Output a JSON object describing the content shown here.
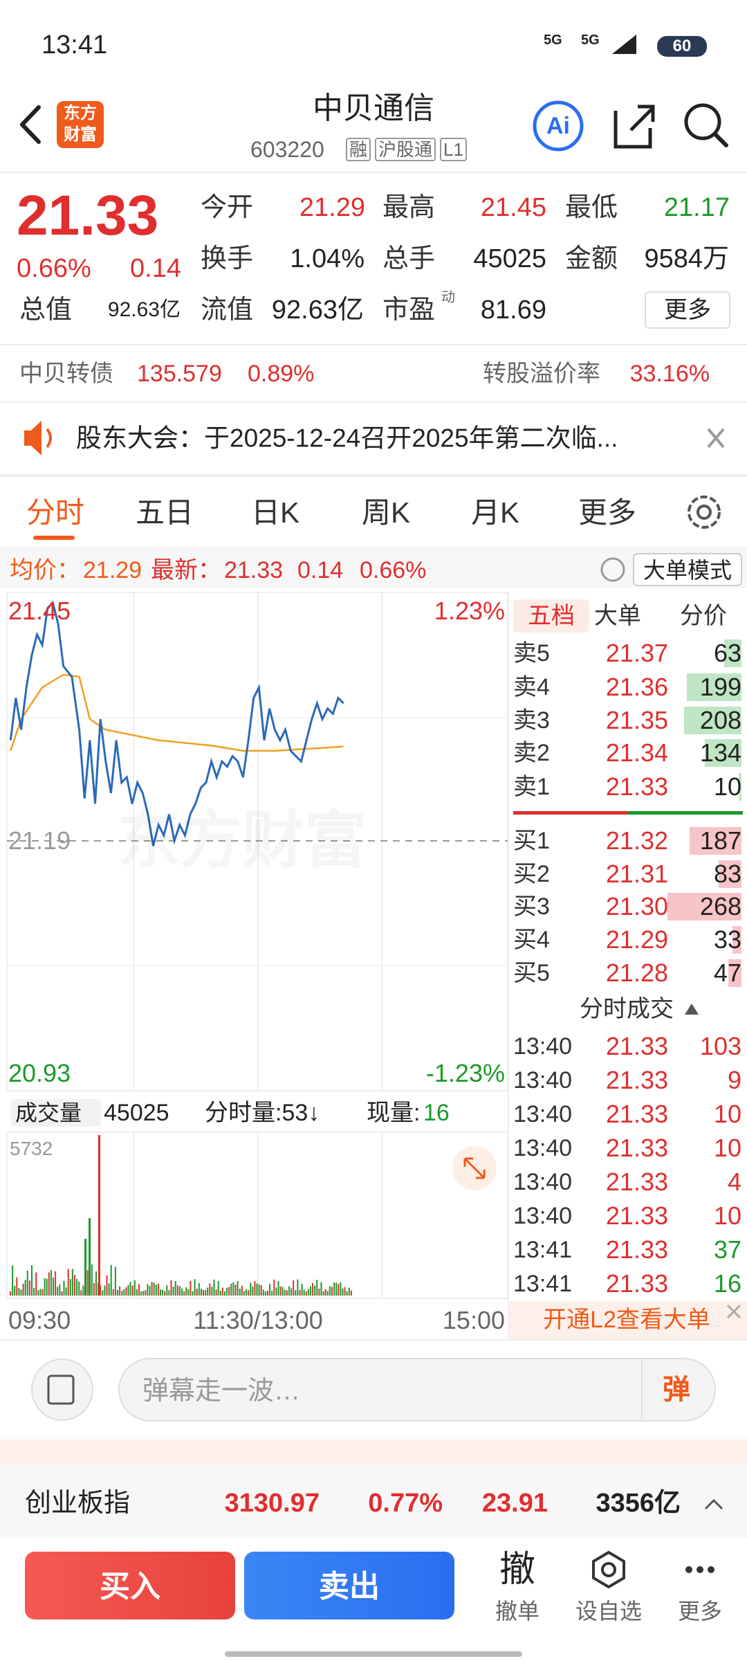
{
  "status": {
    "time": "13:41",
    "net1": "5G",
    "net2": "5G",
    "battery": "60"
  },
  "header": {
    "logo": [
      "东方",
      "财富"
    ],
    "title": "中贝通信",
    "code": "603220",
    "tags": [
      "融",
      "沪股通",
      "L1"
    ],
    "ai": "Ai"
  },
  "quote": {
    "price": "21.33",
    "pct": "0.66%",
    "change": "0.14",
    "more": "更多",
    "pe_sup": "动",
    "fields": [
      {
        "label": "今开",
        "value": "21.29",
        "color": "#e02e2e"
      },
      {
        "label": "最高",
        "value": "21.45",
        "color": "#e02e2e"
      },
      {
        "label": "最低",
        "value": "21.17",
        "color": "#1a9a2a"
      },
      {
        "label": "换手",
        "value": "1.04%",
        "color": "#222222"
      },
      {
        "label": "总手",
        "value": "45025",
        "color": "#222222"
      },
      {
        "label": "金额",
        "value": "9584万",
        "color": "#222222"
      },
      {
        "label": "总值",
        "value": "92.63亿",
        "color": "#222222"
      },
      {
        "label": "流值",
        "value": "92.63亿",
        "color": "#222222"
      },
      {
        "label": "市盈",
        "value": "81.69",
        "color": "#222222"
      }
    ]
  },
  "bond": {
    "name": "中贝转债",
    "price": "135.579",
    "pct": "0.89%",
    "premium_label": "转股溢价率",
    "premium": "33.16%"
  },
  "notice": {
    "text": "股东大会：于2025-12-24召开2025年第二次临..."
  },
  "tabs": [
    "分时",
    "五日",
    "日K",
    "周K",
    "月K",
    "更多"
  ],
  "info": {
    "avg_label": "均价：",
    "avg": "21.29",
    "latest_label": "最新：",
    "latest": "21.33",
    "change": "0.14",
    "pct": "0.66%",
    "mode": "大单模式"
  },
  "chart": {
    "watermark": "东方财富",
    "high": "21.45",
    "high_pct": "1.23%",
    "mid": "21.19",
    "low": "20.93",
    "low_pct": "-1.23%",
    "vol_label": "成交量",
    "vol_total": "45025",
    "minute_vol": "分时量:53↓",
    "cur_label": "现量:",
    "cur_vol": "16",
    "vol_max": "5732",
    "times": [
      "09:30",
      "11:30/13:00",
      "15:00"
    ]
  },
  "book": {
    "tabs": [
      "五档",
      "大单",
      "分价"
    ],
    "asks": [
      {
        "label": "卖5",
        "price": "21.37",
        "vol": 63
      },
      {
        "label": "卖4",
        "price": "21.36",
        "vol": 199
      },
      {
        "label": "卖3",
        "price": "21.35",
        "vol": 208
      },
      {
        "label": "卖2",
        "price": "21.34",
        "vol": 134
      },
      {
        "label": "卖1",
        "price": "21.33",
        "vol": 10
      }
    ],
    "bids": [
      {
        "label": "买1",
        "price": "21.32",
        "vol": 187
      },
      {
        "label": "买2",
        "price": "21.31",
        "vol": 83
      },
      {
        "label": "买3",
        "price": "21.30",
        "vol": 268
      },
      {
        "label": "买4",
        "price": "21.29",
        "vol": 33
      },
      {
        "label": "买5",
        "price": "21.28",
        "vol": 47
      }
    ],
    "trades_title": "分时成交",
    "trades": [
      {
        "time": "13:40",
        "price": "21.33",
        "vol": "103",
        "color": "#e02e2e"
      },
      {
        "time": "13:40",
        "price": "21.33",
        "vol": "9",
        "color": "#e02e2e"
      },
      {
        "time": "13:40",
        "price": "21.33",
        "vol": "10",
        "color": "#e02e2e"
      },
      {
        "time": "13:40",
        "price": "21.33",
        "vol": "10",
        "color": "#e02e2e"
      },
      {
        "time": "13:40",
        "price": "21.33",
        "vol": "4",
        "color": "#e02e2e"
      },
      {
        "time": "13:40",
        "price": "21.33",
        "vol": "10",
        "color": "#e02e2e"
      },
      {
        "time": "13:41",
        "price": "21.33",
        "vol": "37",
        "color": "#1a9a2a"
      },
      {
        "time": "13:41",
        "price": "21.33",
        "vol": "16",
        "color": "#1a9a2a"
      }
    ],
    "l2": "开通L2查看大单"
  },
  "comment": {
    "placeholder": "弹幕走一波…",
    "button": "弹"
  },
  "index": {
    "name": "创业板指",
    "value": "3130.97",
    "pct": "0.77%",
    "change": "23.91",
    "amount": "3356亿"
  },
  "bottom": {
    "buy": "买入",
    "sell": "卖出",
    "cancel_icon": "撤",
    "actions": [
      "撤单",
      "设自选",
      "更多"
    ]
  }
}
